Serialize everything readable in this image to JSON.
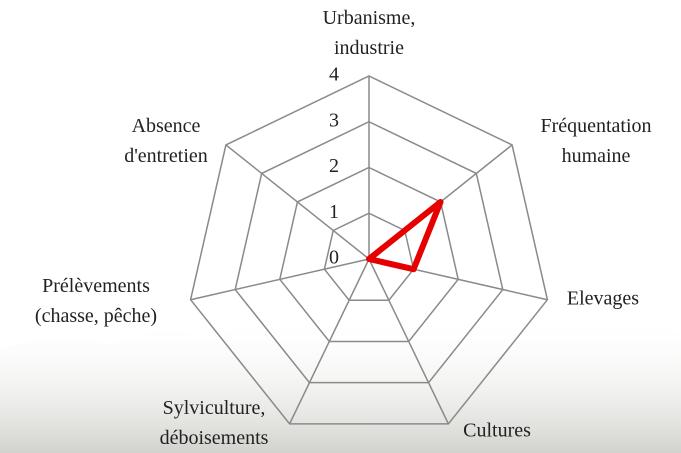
{
  "chart_data": {
    "type": "radar",
    "categories": [
      "Urbanisme,\nindustrie",
      "Fréquentation\nhumaine",
      "Elevages",
      "Cultures",
      "Sylviculture,\ndéboisements",
      "Prélèvements\n(chasse, pêche)",
      "Absence\nd'entretien"
    ],
    "series": [
      {
        "color": "#e60000",
        "values": [
          0,
          2,
          1,
          0,
          0,
          0,
          0
        ]
      }
    ],
    "ylim": [
      0,
      4
    ],
    "yticks": [
      0,
      1,
      2,
      3,
      4
    ],
    "grid": true
  }
}
